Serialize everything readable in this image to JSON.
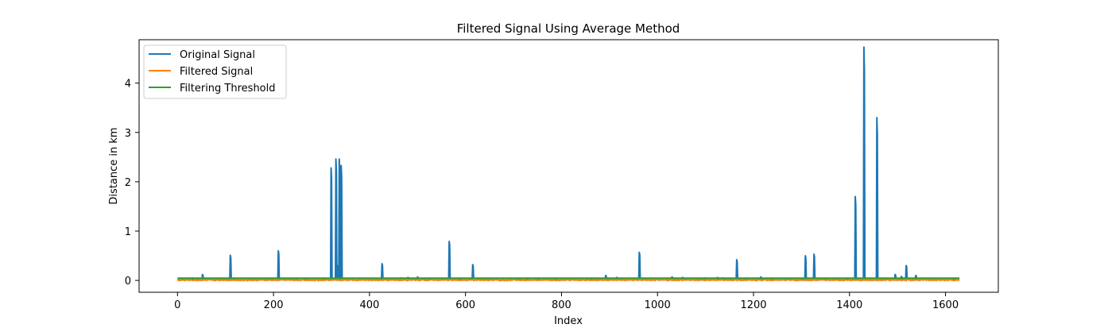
{
  "chart_data": {
    "type": "line",
    "title": "Filtered Signal Using Average Method",
    "xlabel": "Index",
    "ylabel": "Distance in km",
    "xlim": [
      -80,
      1710
    ],
    "ylim": [
      -0.24,
      4.88
    ],
    "xticks": [
      0,
      200,
      400,
      600,
      800,
      1000,
      1200,
      1400,
      1600
    ],
    "yticks": [
      0,
      1,
      2,
      3,
      4
    ],
    "legend_position": "top-left",
    "grid": false,
    "series": [
      {
        "name": "Original Signal",
        "color": "#1f77b4",
        "baseline": 0.02,
        "length": 1630,
        "spikes": [
          [
            30,
            0.05
          ],
          [
            52,
            0.12
          ],
          [
            110,
            0.51
          ],
          [
            210,
            0.6
          ],
          [
            320,
            2.28
          ],
          [
            330,
            2.46
          ],
          [
            333,
            0.3
          ],
          [
            337,
            2.46
          ],
          [
            341,
            2.33
          ],
          [
            426,
            0.34
          ],
          [
            465,
            0.05
          ],
          [
            480,
            0.06
          ],
          [
            500,
            0.07
          ],
          [
            566,
            0.79
          ],
          [
            615,
            0.32
          ],
          [
            892,
            0.1
          ],
          [
            915,
            0.06
          ],
          [
            962,
            0.57
          ],
          [
            1030,
            0.07
          ],
          [
            1052,
            0.06
          ],
          [
            1098,
            0.05
          ],
          [
            1125,
            0.06
          ],
          [
            1135,
            0.05
          ],
          [
            1165,
            0.42
          ],
          [
            1215,
            0.07
          ],
          [
            1308,
            0.5
          ],
          [
            1326,
            0.53
          ],
          [
            1412,
            1.7
          ],
          [
            1430,
            4.73
          ],
          [
            1457,
            3.3
          ],
          [
            1495,
            0.12
          ],
          [
            1508,
            0.08
          ],
          [
            1518,
            0.3
          ],
          [
            1538,
            0.1
          ]
        ]
      },
      {
        "name": "Filtered Signal",
        "color": "#ff7f0e",
        "baseline": 0.01,
        "length": 1630
      },
      {
        "name": "Filtering Threshold",
        "color": "#2ca02c",
        "value": 0.045,
        "length": 1630
      }
    ]
  }
}
